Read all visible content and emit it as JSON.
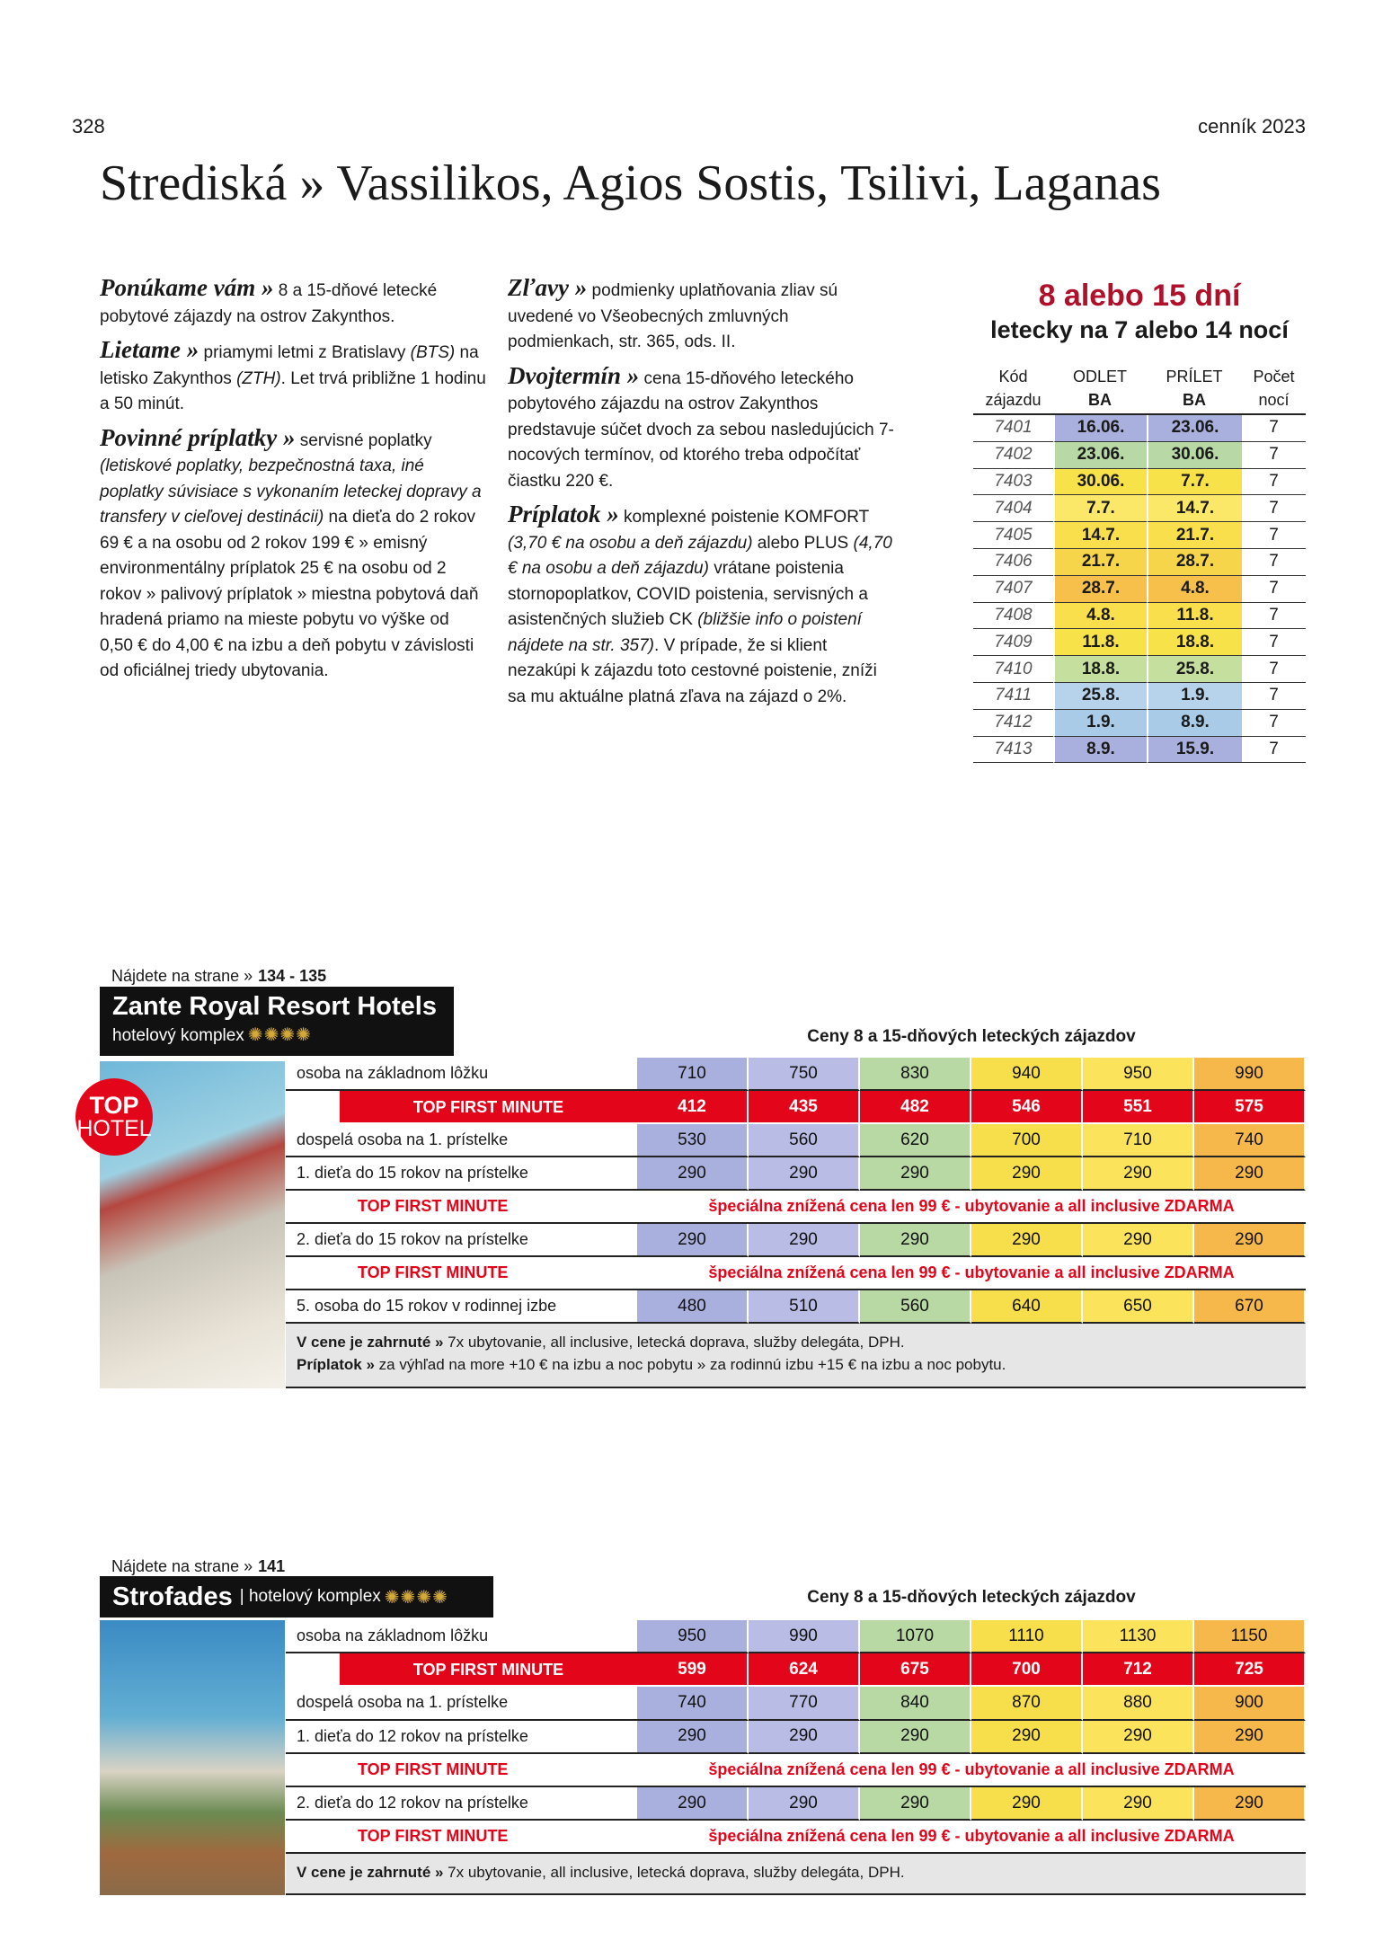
{
  "header": {
    "page_number": "328",
    "catalog": "cenník 2023",
    "title": "Strediská » Vassilikos, Agios Sostis, Tsilivi, Laganas"
  },
  "intro": {
    "columns": [
      [
        {
          "heading": "Ponúkame vám »",
          "segments": [
            {
              "text": " 8 a 15-dňové letecké pobytové zájazdy na ostrov Zakynthos."
            }
          ]
        },
        {
          "heading": "Lietame »",
          "segments": [
            {
              "text": " priamymi letmi z Bratislavy "
            },
            {
              "text": "(BTS)",
              "italic": true
            },
            {
              "text": " na letisko Zakynthos "
            },
            {
              "text": "(ZTH)",
              "italic": true
            },
            {
              "text": ". Let trvá približne 1 hodinu a 50 minút."
            }
          ]
        },
        {
          "heading": "Povinné príplatky »",
          "segments": [
            {
              "text": " servisné poplatky "
            },
            {
              "text": "(letiskové poplatky, bezpečnostná taxa, iné poplatky súvisiace s vykonaním leteckej dopravy a transfery v cieľovej destinácii)",
              "italic": true
            },
            {
              "text": " na dieťa do 2 rokov 69 € a na osobu od 2 rokov 199 € » emisný environmentálny príplatok 25 € na osobu od 2 rokov » palivový príplatok » miestna pobytová daň hradená priamo na mieste pobytu vo výške od 0,50 € do 4,00 € na izbu a deň pobytu v závislosti od oficiálnej triedy ubytovania."
            }
          ]
        }
      ],
      [
        {
          "heading": "Zľavy »",
          "segments": [
            {
              "text": " podmienky uplatňovania zliav sú uvedené vo Všeobecných zmluvných podmienkach, str. 365, ods. II."
            }
          ]
        },
        {
          "heading": "Dvojtermín »",
          "segments": [
            {
              "text": " cena 15-dňového leteckého pobytového zájazdu na ostrov Zakynthos predstavuje súčet dvoch za sebou nasledujúcich 7-nocových termínov, od ktorého treba odpočítať čiastku 220 €."
            }
          ]
        },
        {
          "heading": "Príplatok »",
          "segments": [
            {
              "text": " komplexné poistenie KOMFORT "
            },
            {
              "text": "(3,70 € na osobu a deň zájazdu)",
              "italic": true
            },
            {
              "text": " alebo PLUS "
            },
            {
              "text": "(4,70 € na osobu a deň zájazdu)",
              "italic": true
            },
            {
              "text": " vrátane poistenia stornopoplatkov, COVID poistenia, servisných a asistenčných služieb CK "
            },
            {
              "text": "(bližšie info o poistení nájdete na str. 357)",
              "italic": true
            },
            {
              "text": ". V prípade, že si klient nezakúpi k zájazdu toto cestovné poistenie, zníži sa mu aktuálne platná zľava na zájazd o 2%."
            }
          ]
        }
      ]
    ]
  },
  "dates": {
    "title": "8 alebo 15 dní",
    "subtitle": "letecky na 7 alebo 14 nocí",
    "headers": [
      [
        "Kód",
        "zájazdu"
      ],
      [
        "ODLET",
        "BA"
      ],
      [
        "PRÍLET",
        "BA"
      ],
      [
        "Počet",
        "nocí"
      ]
    ],
    "rows": [
      {
        "code": "7401",
        "depart": "16.06.",
        "arrive": "23.06.",
        "nights": 7,
        "color": "#aab0de"
      },
      {
        "code": "7402",
        "depart": "23.06.",
        "arrive": "30.06.",
        "nights": 7,
        "color": "#b8d8a6"
      },
      {
        "code": "7403",
        "depart": "30.06.",
        "arrive": "7.7.",
        "nights": 7,
        "color": "#f8e24a"
      },
      {
        "code": "7404",
        "depart": "7.7.",
        "arrive": "14.7.",
        "nights": 7,
        "color": "#fbe768"
      },
      {
        "code": "7405",
        "depart": "14.7.",
        "arrive": "21.7.",
        "nights": 7,
        "color": "#f9df4c"
      },
      {
        "code": "7406",
        "depart": "21.7.",
        "arrive": "28.7.",
        "nights": 7,
        "color": "#f7d54a"
      },
      {
        "code": "7407",
        "depart": "28.7.",
        "arrive": "4.8.",
        "nights": 7,
        "color": "#f6c04a"
      },
      {
        "code": "7408",
        "depart": "4.8.",
        "arrive": "11.8.",
        "nights": 7,
        "color": "#f9df4c"
      },
      {
        "code": "7409",
        "depart": "11.8.",
        "arrive": "18.8.",
        "nights": 7,
        "color": "#f8e24a"
      },
      {
        "code": "7410",
        "depart": "18.8.",
        "arrive": "25.8.",
        "nights": 7,
        "color": "#c5df9e"
      },
      {
        "code": "7411",
        "depart": "25.8.",
        "arrive": "1.9.",
        "nights": 7,
        "color": "#b7d3ec"
      },
      {
        "code": "7412",
        "depart": "1.9.",
        "arrive": "8.9.",
        "nights": 7,
        "color": "#a9cbe8"
      },
      {
        "code": "7413",
        "depart": "8.9.",
        "arrive": "15.9.",
        "nights": 7,
        "color": "#aab0de"
      }
    ]
  },
  "price_column_colors": [
    "#aab0de",
    "#b9bde6",
    "#b8d8a4",
    "#f6df4a",
    "#fbe45c",
    "#f6b84a"
  ],
  "hotels": [
    {
      "ref_label": "Nájdete na strane »",
      "ref_pages": "134 - 135",
      "name": "Zante Royal Resort Hotels",
      "type": "hotelový komplex",
      "header": "stacked",
      "stars": 4,
      "badge": [
        "TOP",
        "HOTEL"
      ],
      "prices_title": "Ceny 8 a 15-dňových leteckých zájazdov",
      "rows": [
        {
          "label": "osoba na základnom lôžku",
          "values": [
            710,
            750,
            830,
            940,
            950,
            990
          ]
        },
        {
          "label": "TOP FIRST MINUTE",
          "highlight": true,
          "values": [
            412,
            435,
            482,
            546,
            551,
            575
          ]
        },
        {
          "label": "dospelá osoba na 1. prístelke",
          "values": [
            530,
            560,
            620,
            700,
            710,
            740
          ]
        },
        {
          "label": "1. dieťa do 15 rokov na prístelke",
          "values": [
            290,
            290,
            290,
            290,
            290,
            290
          ]
        },
        {
          "label": "TOP FIRST MINUTE",
          "offer": "špeciálna znížená cena len 99 € - ubytovanie a all inclusive ZDARMA"
        },
        {
          "label": "2. dieťa do 15 rokov na prístelke",
          "values": [
            290,
            290,
            290,
            290,
            290,
            290
          ]
        },
        {
          "label": "TOP FIRST MINUTE",
          "offer": "špeciálna znížená cena len 99 € - ubytovanie a all inclusive ZDARMA"
        },
        {
          "label": "5. osoba do 15 rokov v rodinnej izbe",
          "values": [
            480,
            510,
            560,
            640,
            650,
            670
          ]
        }
      ],
      "notes": [
        {
          "label": "V cene je zahrnuté »",
          "text": " 7x ubytovanie, all inclusive, letecká doprava, služby delegáta, DPH."
        },
        {
          "label": "Príplatok »",
          "text": " za výhľad na more +10 € na izbu a noc pobytu » za rodinnú izbu +15 € na izbu a noc pobytu."
        }
      ]
    },
    {
      "ref_label": "Nájdete na strane »",
      "ref_pages": "141",
      "name": "Strofades",
      "type": "| hotelový komplex",
      "header": "inline",
      "stars": 4,
      "prices_title": "Ceny 8 a 15-dňových leteckých zájazdov",
      "rows": [
        {
          "label": "osoba na základnom lôžku",
          "values": [
            950,
            990,
            1070,
            1110,
            1130,
            1150
          ]
        },
        {
          "label": "TOP FIRST MINUTE",
          "highlight": true,
          "values": [
            599,
            624,
            675,
            700,
            712,
            725
          ]
        },
        {
          "label": "dospelá osoba na 1. prístelke",
          "values": [
            740,
            770,
            840,
            870,
            880,
            900
          ]
        },
        {
          "label": "1. dieťa do 12 rokov na prístelke",
          "values": [
            290,
            290,
            290,
            290,
            290,
            290
          ]
        },
        {
          "label": "TOP FIRST MINUTE",
          "offer": "špeciálna znížená cena len 99 € - ubytovanie a all inclusive ZDARMA"
        },
        {
          "label": "2. dieťa do 12 rokov na prístelke",
          "values": [
            290,
            290,
            290,
            290,
            290,
            290
          ]
        },
        {
          "label": "TOP FIRST MINUTE",
          "offer": "špeciálna znížená cena len 99 € - ubytovanie a all inclusive ZDARMA"
        }
      ],
      "notes": [
        {
          "label": "V cene je zahrnuté »",
          "text": " 7x ubytovanie, all inclusive, letecká doprava, služby delegáta, DPH."
        }
      ]
    }
  ]
}
